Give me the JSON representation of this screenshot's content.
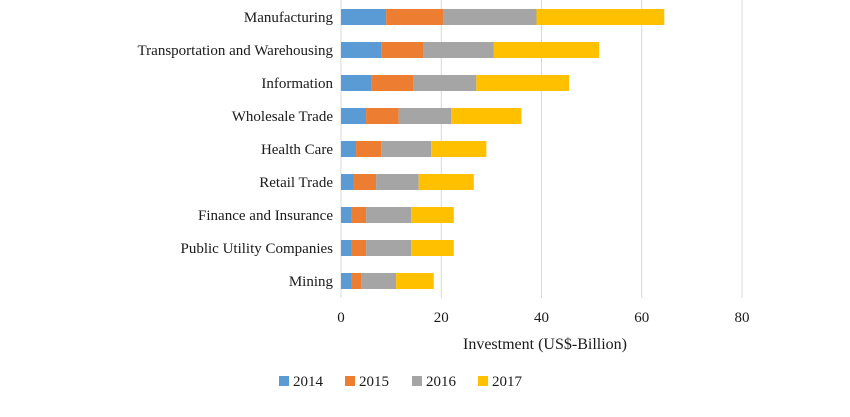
{
  "chart_data": {
    "type": "bar",
    "orientation": "horizontal",
    "stacked": true,
    "categories": [
      "Manufacturing",
      "Transportation and Warehousing",
      "Information",
      "Wholesale Trade",
      "Health Care",
      "Retail Trade",
      "Finance and Insurance",
      "Public Utility Companies",
      "Mining"
    ],
    "series": [
      {
        "name": "2014",
        "color": "#5b9bd5",
        "values": [
          9,
          8,
          6,
          5,
          3,
          2.5,
          2,
          2,
          2
        ]
      },
      {
        "name": "2015",
        "color": "#ed7d31",
        "values": [
          11.5,
          8.5,
          8.5,
          6.5,
          5,
          4.5,
          3,
          3,
          2
        ]
      },
      {
        "name": "2016",
        "color": "#a5a5a5",
        "values": [
          18.5,
          14,
          12.5,
          10.5,
          10,
          8.5,
          9,
          9,
          7
        ]
      },
      {
        "name": "2017",
        "color": "#ffc000",
        "values": [
          25.5,
          21,
          18.5,
          14,
          11,
          11,
          8.5,
          8.5,
          7.5
        ]
      }
    ],
    "xlabel": "Investment (US$-Billion)",
    "ylabel": "",
    "xlim": [
      0,
      80
    ],
    "xticks": [
      0,
      20,
      40,
      60,
      80
    ],
    "grid": true,
    "legend_position": "bottom"
  }
}
